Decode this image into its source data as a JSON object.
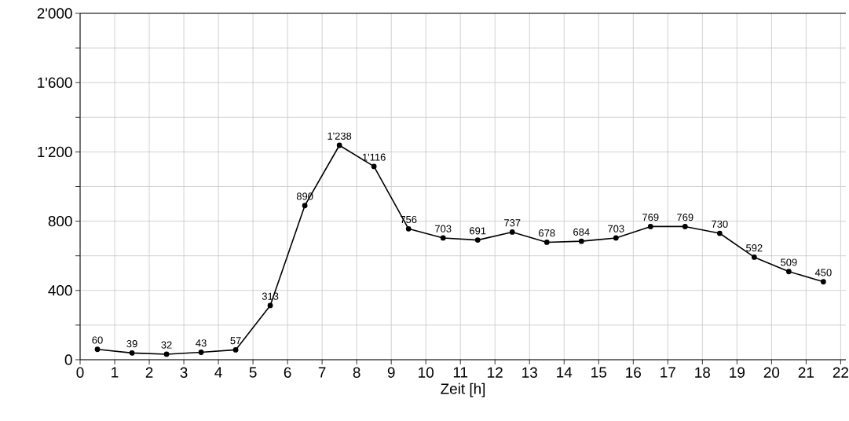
{
  "chart_data": {
    "type": "line",
    "xlabel": "Zeit [h]",
    "x": [
      0.5,
      1.5,
      2.5,
      3.5,
      4.5,
      5.5,
      6.5,
      7.5,
      8.5,
      9.5,
      10.5,
      11.5,
      12.5,
      13.5,
      14.5,
      15.5,
      16.5,
      17.5,
      18.5,
      19.5,
      20.5,
      21.5
    ],
    "series": [
      {
        "color": "#000000",
        "values": [
          60,
          39,
          32,
          43,
          57,
          313,
          890,
          1238,
          1116,
          756,
          703,
          691,
          737,
          678,
          684,
          703,
          769,
          769,
          730,
          592,
          509,
          450
        ],
        "value_labels": [
          "60",
          "39",
          "32",
          "43",
          "57",
          "313",
          "890",
          "1'238",
          "1'116",
          "756",
          "703",
          "691",
          "737",
          "678",
          "684",
          "703",
          "769",
          "769",
          "730",
          "592",
          "509",
          "450"
        ]
      }
    ],
    "xlim": [
      0,
      22.15
    ],
    "xticks": [
      0,
      1,
      2,
      3,
      4,
      5,
      6,
      7,
      8,
      9,
      10,
      11,
      12,
      13,
      14,
      15,
      16,
      17,
      18,
      19,
      20,
      21,
      22
    ],
    "ylim": [
      0,
      2000
    ],
    "yticks": [
      0,
      {
        "value": 200,
        "label": null
      },
      400,
      {
        "value": 600,
        "label": null
      },
      800,
      {
        "value": 1000,
        "label": null
      },
      {
        "value": 1200,
        "label": "1'200"
      },
      {
        "value": 1400,
        "label": null
      },
      {
        "value": 1600,
        "label": "1'600"
      },
      {
        "value": 1800,
        "label": null
      },
      {
        "value": 2000,
        "label": "2'000"
      }
    ],
    "grid": true,
    "marker": "circle",
    "line_style": "solid"
  }
}
